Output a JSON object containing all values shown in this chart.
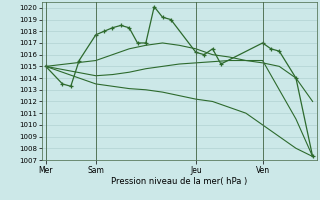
{
  "bg_color": "#cce8e8",
  "grid_color": "#aacccc",
  "line_color": "#2d6a2d",
  "xlabel_text": "Pression niveau de la mer( hPa )",
  "ylim_min": 1007,
  "ylim_max": 1020.5,
  "yticks": [
    1007,
    1008,
    1009,
    1010,
    1011,
    1012,
    1013,
    1014,
    1015,
    1016,
    1017,
    1018,
    1019,
    1020
  ],
  "day_labels": [
    "Mer",
    "Sam",
    "Jeu",
    "Ven"
  ],
  "day_positions": [
    0,
    6,
    18,
    26
  ],
  "x_total_min": -0.5,
  "x_total_max": 32.5,
  "series": [
    {
      "x": [
        0,
        2,
        3,
        4,
        6,
        7,
        8,
        9,
        10,
        11,
        12,
        13,
        14,
        15,
        18,
        19,
        20,
        21,
        26,
        27,
        28,
        30,
        32
      ],
      "y": [
        1015.0,
        1013.5,
        1013.3,
        1015.5,
        1017.7,
        1018.0,
        1018.3,
        1018.5,
        1018.3,
        1017.0,
        1017.0,
        1020.1,
        1019.2,
        1019.0,
        1016.2,
        1016.0,
        1016.5,
        1015.2,
        1017.0,
        1016.5,
        1016.3,
        1014.0,
        1007.3
      ],
      "marker": "+"
    },
    {
      "x": [
        0,
        6,
        8,
        10,
        12,
        14,
        16,
        18,
        20,
        22,
        24,
        26,
        28,
        30,
        32
      ],
      "y": [
        1015.0,
        1015.5,
        1016.0,
        1016.5,
        1016.8,
        1017.0,
        1016.8,
        1016.5,
        1016.0,
        1015.8,
        1015.5,
        1015.5,
        1013.0,
        1010.5,
        1007.3
      ],
      "marker": null
    },
    {
      "x": [
        0,
        6,
        8,
        10,
        12,
        14,
        16,
        18,
        20,
        22,
        24,
        26,
        28,
        30,
        32
      ],
      "y": [
        1015.0,
        1014.2,
        1014.3,
        1014.5,
        1014.8,
        1015.0,
        1015.2,
        1015.3,
        1015.4,
        1015.5,
        1015.5,
        1015.3,
        1015.0,
        1014.0,
        1012.0
      ],
      "marker": null
    },
    {
      "x": [
        0,
        6,
        8,
        10,
        12,
        14,
        16,
        18,
        20,
        22,
        24,
        26,
        28,
        30,
        32
      ],
      "y": [
        1015.0,
        1013.5,
        1013.3,
        1013.1,
        1013.0,
        1012.8,
        1012.5,
        1012.2,
        1012.0,
        1011.5,
        1011.0,
        1010.0,
        1009.0,
        1008.0,
        1007.3
      ],
      "marker": null
    }
  ]
}
